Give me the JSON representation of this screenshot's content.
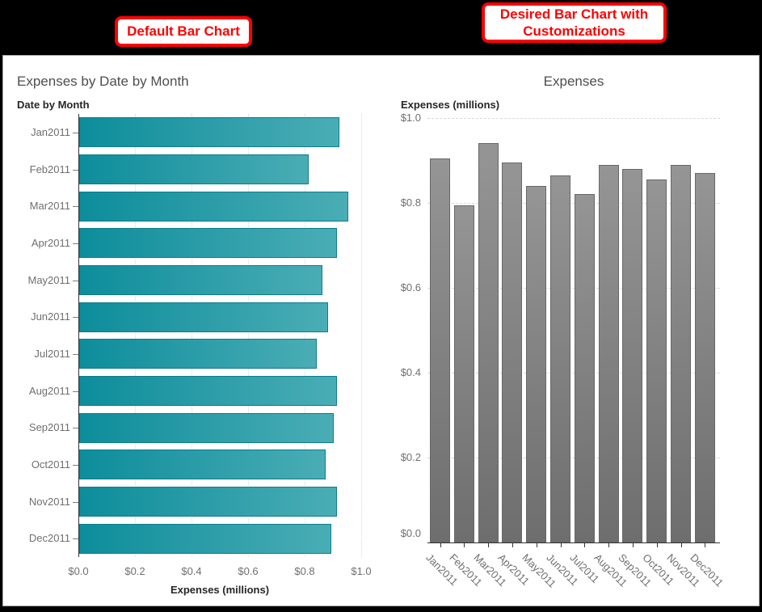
{
  "annotations": {
    "default_label": "Default Bar Chart",
    "desired_label": "Desired Bar Chart with Customizations"
  },
  "colors": {
    "annotation_red": "#ff0000",
    "teal_bar_start": "#0d8d9b",
    "teal_bar_end": "#4aadb5",
    "teal_bar_border": "#0b7d8b",
    "gray_bar_start": "#959595",
    "gray_bar_end": "#6e6e6e",
    "gray_bar_border": "#686868",
    "chart_title_gray": "#4e4e4e",
    "tick_label_gray": "#6f6f6f",
    "axis_title_dark": "#262626",
    "gridline_gray": "#d9d9d9",
    "axis_line_dark": "#333333"
  },
  "chart_data": [
    {
      "type": "bar",
      "orientation": "horizontal",
      "title": "Expenses by Date by Month",
      "category_axis_label": "Date by Month",
      "value_axis_label": "Expenses (millions)",
      "categories": [
        "Jan2011",
        "Feb2011",
        "Mar2011",
        "Apr2011",
        "May2011",
        "Jun2011",
        "Jul2011",
        "Aug2011",
        "Sep2011",
        "Oct2011",
        "Nov2011",
        "Dec2011"
      ],
      "values": [
        0.92,
        0.81,
        0.95,
        0.91,
        0.86,
        0.88,
        0.84,
        0.91,
        0.9,
        0.87,
        0.91,
        0.89
      ],
      "value_ticks": [
        "$0.0",
        "$0.2",
        "$0.4",
        "$0.6",
        "$0.8",
        "$1.0"
      ],
      "value_range": [
        0.0,
        1.0
      ],
      "grid": "dotted-vertical",
      "bar_style": "teal-gradient",
      "legend": "none"
    },
    {
      "type": "bar",
      "orientation": "vertical",
      "title": "Expenses",
      "category_axis_label": "",
      "value_axis_label": "Expenses (millions)",
      "categories": [
        "Jan2011",
        "Feb2011",
        "Mar2011",
        "Apr2011",
        "May2011",
        "Jun2011",
        "Jul2011",
        "Aug2011",
        "Sep2011",
        "Oct2011",
        "Nov2011",
        "Dec2011"
      ],
      "values": [
        0.905,
        0.795,
        0.94,
        0.895,
        0.84,
        0.865,
        0.82,
        0.89,
        0.88,
        0.855,
        0.89,
        0.87
      ],
      "value_ticks": [
        "$0.0",
        "$0.2",
        "$0.4",
        "$0.6",
        "$0.8",
        "$1.0"
      ],
      "value_range": [
        0.0,
        1.0
      ],
      "grid": "dashed-horizontal",
      "bar_style": "gray-gradient",
      "category_label_rotation": 45,
      "legend": "none"
    }
  ]
}
